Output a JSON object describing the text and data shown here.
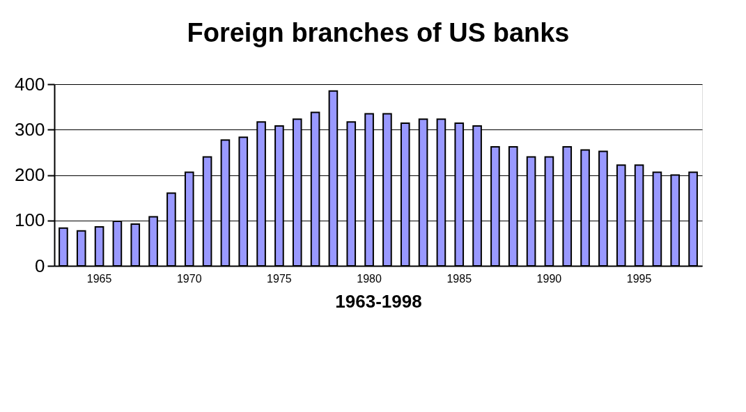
{
  "chart_data": {
    "type": "bar",
    "title": "Foreign branches of US banks",
    "xlabel": "1963-1998",
    "categories": [
      null,
      null,
      "1965",
      null,
      null,
      null,
      null,
      "1970",
      null,
      null,
      null,
      null,
      "1975",
      null,
      null,
      null,
      null,
      "1980",
      null,
      null,
      null,
      null,
      "1985",
      null,
      null,
      null,
      null,
      "1990",
      null,
      null,
      null,
      null,
      "1995",
      null,
      null,
      null
    ],
    "series": [
      {
        "color": "#9999ff",
        "values": [
          83,
          77,
          86,
          98,
          92,
          108,
          160,
          206,
          240,
          277,
          283,
          317,
          308,
          323,
          338,
          385,
          317,
          335,
          335,
          314,
          323,
          323,
          314,
          308,
          262,
          262,
          240,
          240,
          262,
          255,
          252,
          222,
          222,
          206,
          200,
          206
        ]
      }
    ],
    "ylim": [
      0,
      400
    ],
    "yticks": [
      0,
      100,
      200,
      300,
      400
    ],
    "grid": "y",
    "legend": false
  }
}
